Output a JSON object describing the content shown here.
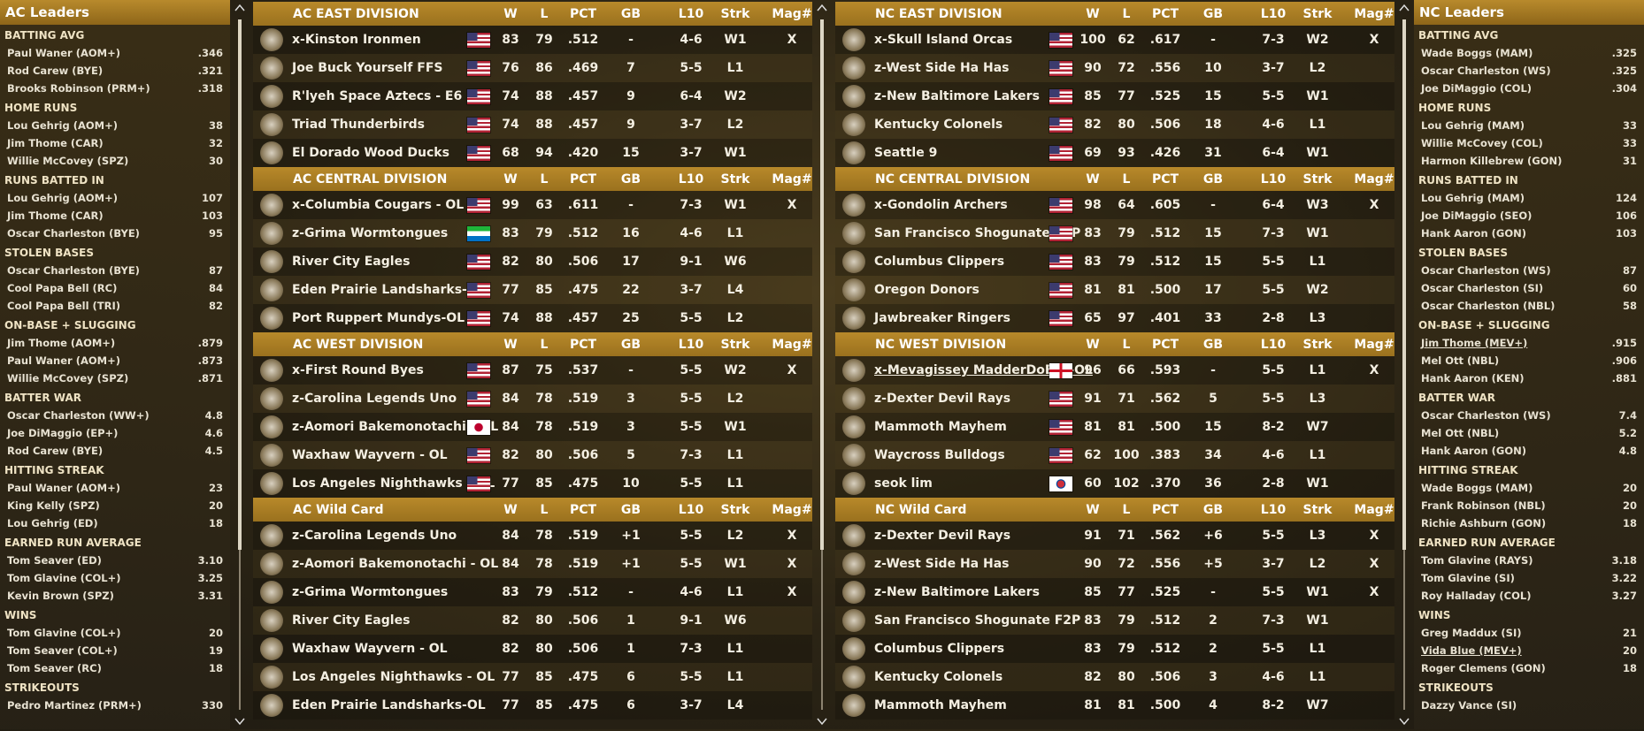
{
  "columns": [
    "W",
    "L",
    "PCT",
    "GB",
    "L10",
    "Strk",
    "Mag#"
  ],
  "ac_leaders": {
    "title": "AC Leaders",
    "categories": [
      {
        "name": "BATTING AVG",
        "entries": [
          {
            "player": "Paul Waner (AOM+)",
            "value": ".346"
          },
          {
            "player": "Rod Carew (BYE)",
            "value": ".321"
          },
          {
            "player": "Brooks Robinson (PRM+)",
            "value": ".318"
          }
        ]
      },
      {
        "name": "HOME RUNS",
        "entries": [
          {
            "player": "Lou Gehrig (AOM+)",
            "value": "38"
          },
          {
            "player": "Jim Thome (CAR)",
            "value": "32"
          },
          {
            "player": "Willie McCovey (SPZ)",
            "value": "30"
          }
        ]
      },
      {
        "name": "RUNS BATTED IN",
        "entries": [
          {
            "player": "Lou Gehrig (AOM+)",
            "value": "107"
          },
          {
            "player": "Jim Thome (CAR)",
            "value": "103"
          },
          {
            "player": "Oscar Charleston (BYE)",
            "value": "95"
          }
        ]
      },
      {
        "name": "STOLEN BASES",
        "entries": [
          {
            "player": "Oscar Charleston (BYE)",
            "value": "87"
          },
          {
            "player": "Cool Papa Bell (RC)",
            "value": "84"
          },
          {
            "player": "Cool Papa Bell (TRI)",
            "value": "82"
          }
        ]
      },
      {
        "name": "ON-BASE + SLUGGING",
        "entries": [
          {
            "player": "Jim Thome (AOM+)",
            "value": ".879"
          },
          {
            "player": "Paul Waner (AOM+)",
            "value": ".873"
          },
          {
            "player": "Willie McCovey (SPZ)",
            "value": ".871"
          }
        ]
      },
      {
        "name": "BATTER WAR",
        "entries": [
          {
            "player": "Oscar Charleston (WW+)",
            "value": "4.8"
          },
          {
            "player": "Joe DiMaggio (EP+)",
            "value": "4.6"
          },
          {
            "player": "Rod Carew (BYE)",
            "value": "4.5"
          }
        ]
      },
      {
        "name": "HITTING STREAK",
        "entries": [
          {
            "player": "Paul Waner (AOM+)",
            "value": "23"
          },
          {
            "player": "King Kelly (SPZ)",
            "value": "20"
          },
          {
            "player": "Lou Gehrig (ED)",
            "value": "18"
          }
        ]
      },
      {
        "name": "EARNED RUN AVERAGE",
        "entries": [
          {
            "player": "Tom Seaver (ED)",
            "value": "3.10"
          },
          {
            "player": "Tom Glavine (COL+)",
            "value": "3.25"
          },
          {
            "player": "Kevin Brown (SPZ)",
            "value": "3.31"
          }
        ]
      },
      {
        "name": "WINS",
        "entries": [
          {
            "player": "Tom Glavine (COL+)",
            "value": "20"
          },
          {
            "player": "Tom Seaver (COL+)",
            "value": "19"
          },
          {
            "player": "Tom Seaver (RC)",
            "value": "18"
          }
        ]
      },
      {
        "name": "STRIKEOUTS",
        "entries": [
          {
            "player": "Pedro Martinez (PRM+)",
            "value": "330"
          }
        ]
      }
    ]
  },
  "nc_leaders": {
    "title": "NC Leaders",
    "categories": [
      {
        "name": "BATTING AVG",
        "entries": [
          {
            "player": "Wade Boggs (MAM)",
            "value": ".325"
          },
          {
            "player": "Oscar Charleston (WS)",
            "value": ".325"
          },
          {
            "player": "Joe DiMaggio (COL)",
            "value": ".304"
          }
        ]
      },
      {
        "name": "HOME RUNS",
        "entries": [
          {
            "player": "Lou Gehrig (MAM)",
            "value": "33"
          },
          {
            "player": "Willie McCovey (COL)",
            "value": "33"
          },
          {
            "player": "Harmon Killebrew (GON)",
            "value": "31"
          }
        ]
      },
      {
        "name": "RUNS BATTED IN",
        "entries": [
          {
            "player": "Lou Gehrig (MAM)",
            "value": "124"
          },
          {
            "player": "Joe DiMaggio (SEO)",
            "value": "106"
          },
          {
            "player": "Hank Aaron (GON)",
            "value": "103"
          }
        ]
      },
      {
        "name": "STOLEN BASES",
        "entries": [
          {
            "player": "Oscar Charleston (WS)",
            "value": "87"
          },
          {
            "player": "Oscar Charleston (SI)",
            "value": "60"
          },
          {
            "player": "Oscar Charleston (NBL)",
            "value": "58"
          }
        ]
      },
      {
        "name": "ON-BASE + SLUGGING",
        "entries": [
          {
            "player": "Jim Thome (MEV+)",
            "value": ".915",
            "underline": true
          },
          {
            "player": "Mel Ott (NBL)",
            "value": ".906"
          },
          {
            "player": "Hank Aaron (KEN)",
            "value": ".881"
          }
        ]
      },
      {
        "name": "BATTER WAR",
        "entries": [
          {
            "player": "Oscar Charleston (WS)",
            "value": "7.4"
          },
          {
            "player": "Mel Ott (NBL)",
            "value": "5.2"
          },
          {
            "player": "Hank Aaron (GON)",
            "value": "4.8"
          }
        ]
      },
      {
        "name": "HITTING STREAK",
        "entries": [
          {
            "player": "Wade Boggs (MAM)",
            "value": "20"
          },
          {
            "player": "Frank Robinson (NBL)",
            "value": "20"
          },
          {
            "player": "Richie Ashburn (GON)",
            "value": "18"
          }
        ]
      },
      {
        "name": "EARNED RUN AVERAGE",
        "entries": [
          {
            "player": "Tom Glavine (RAYS)",
            "value": "3.18"
          },
          {
            "player": "Tom Glavine (SI)",
            "value": "3.22"
          },
          {
            "player": "Roy Halladay (COL)",
            "value": "3.27"
          }
        ]
      },
      {
        "name": "WINS",
        "entries": [
          {
            "player": "Greg Maddux (SI)",
            "value": "21"
          },
          {
            "player": "Vida Blue (MEV+)",
            "value": "20",
            "underline": true
          },
          {
            "player": "Roger Clemens (GON)",
            "value": "18"
          }
        ]
      },
      {
        "name": "STRIKEOUTS",
        "entries": [
          {
            "player": "Dazzy Vance (SI)"
          }
        ]
      }
    ]
  },
  "ac_standings": {
    "divisions": [
      {
        "title": "AC EAST DIVISION",
        "rows": [
          {
            "team": "x-Kinston Ironmen",
            "flag": "us",
            "cells": [
              83,
              79,
              ".512",
              "-",
              "4-6",
              "W1",
              "X"
            ]
          },
          {
            "team": "Joe Buck Yourself FFS",
            "flag": "us",
            "cells": [
              76,
              86,
              ".469",
              "7",
              "5-5",
              "L1",
              null
            ]
          },
          {
            "team": "R'lyeh Space Aztecs - E6",
            "flag": "us",
            "cells": [
              74,
              88,
              ".457",
              "9",
              "6-4",
              "W2",
              null
            ]
          },
          {
            "team": "Triad Thunderbirds",
            "flag": "us",
            "cells": [
              74,
              88,
              ".457",
              "9",
              "3-7",
              "L2",
              null
            ]
          },
          {
            "team": "El Dorado Wood Ducks",
            "flag": "us",
            "cells": [
              68,
              94,
              ".420",
              "15",
              "3-7",
              "W1",
              null
            ]
          }
        ]
      },
      {
        "title": "AC CENTRAL DIVISION",
        "rows": [
          {
            "team": "x-Columbia Cougars - OL",
            "flag": "us",
            "cells": [
              99,
              63,
              ".611",
              "-",
              "7-3",
              "W1",
              "X"
            ]
          },
          {
            "team": "z-Grima Wormtongues",
            "flag": "sl",
            "cells": [
              83,
              79,
              ".512",
              "16",
              "4-6",
              "L1",
              null
            ]
          },
          {
            "team": "River City Eagles",
            "flag": "us",
            "cells": [
              82,
              80,
              ".506",
              "17",
              "9-1",
              "W6",
              null
            ]
          },
          {
            "team": "Eden Prairie Landsharks-OL",
            "flag": "us",
            "cells": [
              77,
              85,
              ".475",
              "22",
              "3-7",
              "L4",
              null
            ]
          },
          {
            "team": "Port Ruppert Mundys-OL",
            "flag": "us",
            "cells": [
              74,
              88,
              ".457",
              "25",
              "5-5",
              "L2",
              null
            ]
          }
        ]
      },
      {
        "title": "AC WEST DIVISION",
        "rows": [
          {
            "team": "x-First Round Byes",
            "flag": "us",
            "cells": [
              87,
              75,
              ".537",
              "-",
              "5-5",
              "W2",
              "X"
            ]
          },
          {
            "team": "z-Carolina Legends Uno",
            "flag": "us",
            "cells": [
              84,
              78,
              ".519",
              "3",
              "5-5",
              "L2",
              null
            ]
          },
          {
            "team": "z-Aomori Bakemonotachi - OL",
            "flag": "jp",
            "cells": [
              84,
              78,
              ".519",
              "3",
              "5-5",
              "W1",
              null
            ]
          },
          {
            "team": "Waxhaw Wayvern - OL",
            "flag": "us",
            "cells": [
              82,
              80,
              ".506",
              "5",
              "7-3",
              "L1",
              null
            ]
          },
          {
            "team": "Los Angeles Nighthawks - OL",
            "flag": "us",
            "cells": [
              77,
              85,
              ".475",
              "10",
              "5-5",
              "L1",
              null
            ]
          }
        ]
      },
      {
        "title": "AC  Wild Card",
        "rows": [
          {
            "team": "z-Carolina Legends Uno",
            "cells": [
              84,
              78,
              ".519",
              "+1",
              "5-5",
              "L2",
              "X"
            ]
          },
          {
            "team": "z-Aomori Bakemonotachi - OL",
            "cells": [
              84,
              78,
              ".519",
              "+1",
              "5-5",
              "W1",
              "X"
            ]
          },
          {
            "team": "z-Grima Wormtongues",
            "cells": [
              83,
              79,
              ".512",
              "-",
              "4-6",
              "L1",
              "X"
            ]
          },
          {
            "team": "River City Eagles",
            "cells": [
              82,
              80,
              ".506",
              "1",
              "9-1",
              "W6",
              null
            ]
          },
          {
            "team": "Waxhaw Wayvern - OL",
            "cells": [
              82,
              80,
              ".506",
              "1",
              "7-3",
              "L1",
              null
            ]
          },
          {
            "team": "Los Angeles Nighthawks - OL",
            "cells": [
              77,
              85,
              ".475",
              "6",
              "5-5",
              "L1",
              null
            ]
          },
          {
            "team": "Eden Prairie Landsharks-OL",
            "cells": [
              77,
              85,
              ".475",
              "6",
              "3-7",
              "L4",
              null
            ]
          }
        ]
      }
    ]
  },
  "nc_standings": {
    "divisions": [
      {
        "title": "NC EAST DIVISION",
        "rows": [
          {
            "team": "x-Skull Island Orcas",
            "flag": "us",
            "cells": [
              100,
              62,
              ".617",
              "-",
              "7-3",
              "W2",
              "X"
            ]
          },
          {
            "team": "z-West Side Ha Has",
            "flag": "us",
            "cells": [
              90,
              72,
              ".556",
              "10",
              "3-7",
              "L2",
              null
            ]
          },
          {
            "team": "z-New Baltimore Lakers",
            "flag": "us",
            "cells": [
              85,
              77,
              ".525",
              "15",
              "5-5",
              "W1",
              null
            ]
          },
          {
            "team": "Kentucky Colonels",
            "flag": "us",
            "cells": [
              82,
              80,
              ".506",
              "18",
              "4-6",
              "L1",
              null
            ]
          },
          {
            "team": "Seattle 9",
            "flag": "us",
            "cells": [
              69,
              93,
              ".426",
              "31",
              "6-4",
              "W1",
              null
            ]
          }
        ]
      },
      {
        "title": "NC CENTRAL DIVISION",
        "rows": [
          {
            "team": "x-Gondolin Archers",
            "flag": "us",
            "cells": [
              98,
              64,
              ".605",
              "-",
              "6-4",
              "W3",
              "X"
            ]
          },
          {
            "team": "San Francisco Shogunate F2P",
            "flag": "us",
            "cells": [
              83,
              79,
              ".512",
              "15",
              "7-3",
              "W1",
              null
            ]
          },
          {
            "team": "Columbus Clippers",
            "flag": "us",
            "cells": [
              83,
              79,
              ".512",
              "15",
              "5-5",
              "L1",
              null
            ]
          },
          {
            "team": "Oregon Donors",
            "flag": "us",
            "cells": [
              81,
              81,
              ".500",
              "17",
              "5-5",
              "W2",
              null
            ]
          },
          {
            "team": "Jawbreaker Ringers",
            "flag": "us",
            "cells": [
              65,
              97,
              ".401",
              "33",
              "2-8",
              "L3",
              null
            ]
          }
        ]
      },
      {
        "title": "NC WEST DIVISION",
        "rows": [
          {
            "team": "x-Mevagissey MadderDoEes-OL",
            "flag": "en",
            "underline": true,
            "cells": [
              96,
              66,
              ".593",
              "-",
              "5-5",
              "L1",
              "X"
            ]
          },
          {
            "team": "z-Dexter Devil Rays",
            "flag": "us",
            "cells": [
              91,
              71,
              ".562",
              "5",
              "5-5",
              "L3",
              null
            ]
          },
          {
            "team": "Mammoth Mayhem",
            "flag": "us",
            "cells": [
              81,
              81,
              ".500",
              "15",
              "8-2",
              "W7",
              null
            ]
          },
          {
            "team": "Waycross Bulldogs",
            "flag": "us",
            "cells": [
              62,
              100,
              ".383",
              "34",
              "4-6",
              "L1",
              null
            ]
          },
          {
            "team": "seok lim",
            "flag": "kr",
            "cells": [
              60,
              102,
              ".370",
              "36",
              "2-8",
              "W1",
              null
            ]
          }
        ]
      },
      {
        "title": "NC  Wild Card",
        "rows": [
          {
            "team": "z-Dexter Devil Rays",
            "cells": [
              91,
              71,
              ".562",
              "+6",
              "5-5",
              "L3",
              "X"
            ]
          },
          {
            "team": "z-West Side Ha Has",
            "cells": [
              90,
              72,
              ".556",
              "+5",
              "3-7",
              "L2",
              "X"
            ]
          },
          {
            "team": "z-New Baltimore Lakers",
            "cells": [
              85,
              77,
              ".525",
              "-",
              "5-5",
              "W1",
              "X"
            ]
          },
          {
            "team": "San Francisco Shogunate F2P",
            "cells": [
              83,
              79,
              ".512",
              "2",
              "7-3",
              "W1",
              null
            ]
          },
          {
            "team": "Columbus Clippers",
            "cells": [
              83,
              79,
              ".512",
              "2",
              "5-5",
              "L1",
              null
            ]
          },
          {
            "team": "Kentucky Colonels",
            "cells": [
              82,
              80,
              ".506",
              "3",
              "4-6",
              "L1",
              null
            ]
          },
          {
            "team": "Mammoth Mayhem",
            "cells": [
              81,
              81,
              ".500",
              "4",
              "8-2",
              "W7",
              null
            ]
          }
        ]
      }
    ]
  }
}
